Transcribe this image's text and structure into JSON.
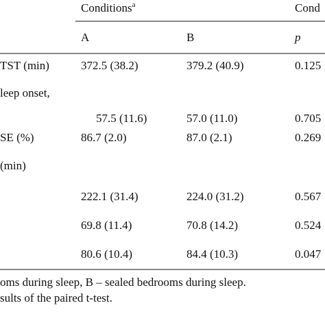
{
  "header": {
    "group_title": "Conditions",
    "group_note": "a",
    "second_group_title": "Cond",
    "columns": [
      "A",
      "B",
      "p"
    ]
  },
  "table": {
    "rows": [
      {
        "label": "TST (min)",
        "cells": [
          "372.5 (38.2)",
          "379.2 (40.9)",
          "0.125"
        ]
      },
      {
        "label": "leep onset,",
        "cells": [
          "57.5 (11.6)",
          "57.0 (11.0)",
          "0.705"
        ]
      },
      {
        "label": "SE (%)",
        "cells": [
          "86.7 (2.0)",
          "87.0 (2.1)",
          "0.269"
        ]
      },
      {
        "label": "(min)",
        "cells": []
      },
      {
        "label": "",
        "cells": [
          "222.1 (31.4)",
          "224.0 (31.2)",
          "0.567"
        ]
      },
      {
        "label": "",
        "cells": [
          "69.8 (11.4)",
          "70.8 (14.2)",
          "0.524"
        ]
      },
      {
        "label": "",
        "cells": [
          "80.6 (10.4)",
          "84.4 (10.3)",
          "0.047"
        ]
      }
    ]
  },
  "footnotes": [
    "oms during sleep, B – sealed bedrooms during sleep.",
    "sults of the paired t-test."
  ]
}
